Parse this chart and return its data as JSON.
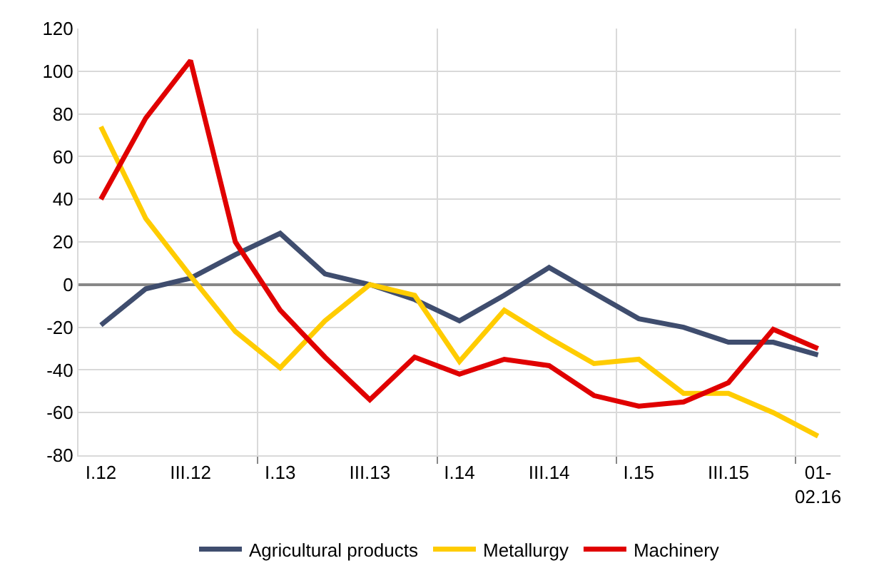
{
  "chart_data": {
    "type": "line",
    "categories": [
      "I.12",
      null,
      "III.12",
      null,
      "I.13",
      null,
      "III.13",
      null,
      "I.14",
      null,
      "III.14",
      null,
      "I.15",
      null,
      "III.15",
      null,
      "01-\n02.16"
    ],
    "series": [
      {
        "name": "Agricultural products",
        "color": "#3f4d6e",
        "values": [
          -19,
          -2,
          3,
          14,
          24,
          5,
          0,
          -7,
          -17,
          -5,
          8,
          -4,
          -16,
          -20,
          -27,
          -27,
          -33
        ]
      },
      {
        "name": "Metallurgy",
        "color": "#ffcc00",
        "values": [
          74,
          31,
          4,
          -22,
          -39,
          -17,
          0,
          -5,
          -36,
          -12,
          -25,
          -37,
          -35,
          -51,
          -51,
          -60,
          -71
        ]
      },
      {
        "name": "Machinery",
        "color": "#e00000",
        "values": [
          40,
          78,
          105,
          20,
          -12,
          -34,
          -54,
          -34,
          -42,
          -35,
          -38,
          -52,
          -57,
          -55,
          -46,
          -21,
          -30
        ]
      }
    ],
    "ylim": [
      -80,
      120
    ],
    "yticks": [
      -80,
      -60,
      -40,
      -20,
      0,
      20,
      40,
      60,
      80,
      100,
      120
    ],
    "grid": true,
    "legend": "bottom",
    "marker": "none",
    "line_style": "solid"
  }
}
